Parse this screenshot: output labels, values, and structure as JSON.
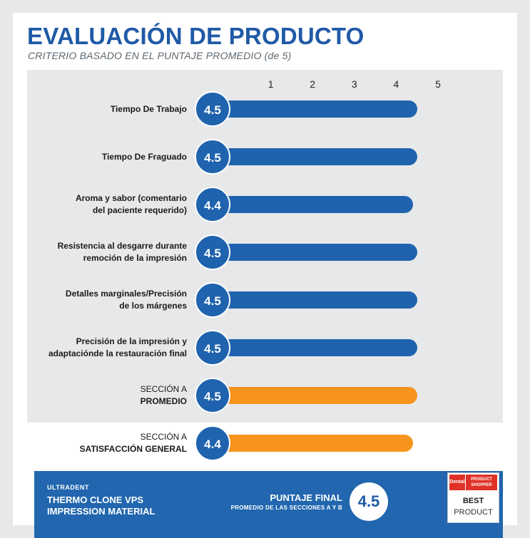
{
  "header": {
    "title": "EVALUACIÓN DE PRODUCTO",
    "subtitle": "CRITERIO BASADO EN EL PUNTAJE PROMEDIO (de 5)"
  },
  "colors": {
    "blue": "#1f63ae",
    "orange": "#f7941d",
    "footer": "#2166ae",
    "title": "#1f5aa6"
  },
  "chart_data": {
    "type": "bar",
    "orientation": "horizontal",
    "x_ticks": [
      "1",
      "2",
      "3",
      "4",
      "5"
    ],
    "xlim": [
      0,
      5
    ],
    "rows": [
      {
        "line1": "Tiempo De Trabajo",
        "line2": "",
        "value": 4.5,
        "label": "4.5",
        "color": "blue",
        "style": "bold"
      },
      {
        "line1": "Tiempo De Fraguado",
        "line2": "",
        "value": 4.5,
        "label": "4.5",
        "color": "blue",
        "style": "bold"
      },
      {
        "line1": "Aroma y sabor (comentario",
        "line2": "del paciente requerido)",
        "value": 4.4,
        "label": "4.4",
        "color": "blue",
        "style": "bold"
      },
      {
        "line1": "Resistencia al desgarre durante",
        "line2": "remoción de la impresión",
        "value": 4.5,
        "label": "4.5",
        "color": "blue",
        "style": "bold"
      },
      {
        "line1": "Detalles marginales/Precisión",
        "line2": "de los márgenes",
        "value": 4.5,
        "label": "4.5",
        "color": "blue",
        "style": "bold"
      },
      {
        "line1": "Precisión de la impresión y",
        "line2": "adaptaciónde la restauración final",
        "value": 4.5,
        "label": "4.5",
        "color": "blue",
        "style": "bold"
      },
      {
        "line1": "SECCIÓN A",
        "line2": "PROMEDIO",
        "value": 4.5,
        "label": "4.5",
        "color": "orange",
        "style": "plain"
      },
      {
        "line1": "SECCIÓN A",
        "line2": "SATISFACCIÓN GENERAL",
        "value": 4.4,
        "label": "4.4",
        "color": "orange",
        "style": "plain"
      }
    ]
  },
  "footer": {
    "brand": "ULTRADENT",
    "product_line1": "THERMO CLONE VPS",
    "product_line2": "IMPRESSION MATERIAL",
    "score_title": "PUNTAJE FINAL",
    "score_subtitle": "PROMEDIO DE LAS SECCIONES A Y B",
    "score": "4.5",
    "seal": {
      "dental": "Dental",
      "ps_line1": "PRODUCT",
      "ps_line2": "SHOPPER",
      "best": "BEST",
      "product": "PRODUCT"
    }
  }
}
